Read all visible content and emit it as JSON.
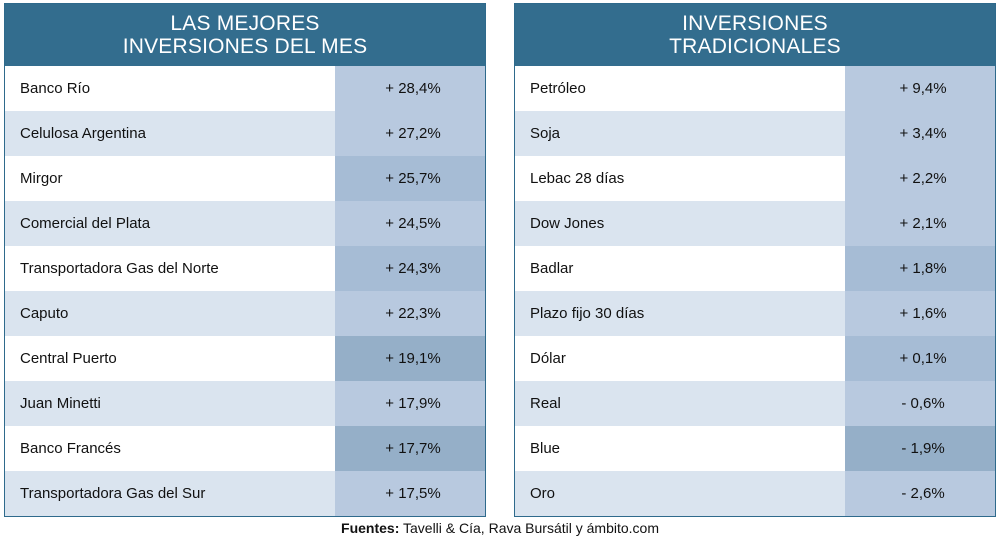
{
  "footer": {
    "label": "Fuentes:",
    "text": "Tavelli & Cía, Rava Bursátil y ámbito.com"
  },
  "colors": {
    "header": "#336d8e",
    "row_light": "#ffffff",
    "row_alt": "#dae4ef",
    "value_shades": [
      "#b8c9df",
      "#a6bcd5",
      "#95afc8"
    ]
  },
  "chart_data": [
    {
      "type": "table",
      "title_lines": [
        "LAS MEJORES",
        "INVERSIONES DEL MES"
      ],
      "rows": [
        {
          "name": "Banco Río",
          "value": "+ 28,4%",
          "shade": 0
        },
        {
          "name": "Celulosa Argentina",
          "value": "+ 27,2%",
          "shade": 0
        },
        {
          "name": "Mirgor",
          "value": "+ 25,7%",
          "shade": 1
        },
        {
          "name": "Comercial del Plata",
          "value": "+ 24,5%",
          "shade": 0
        },
        {
          "name": "Transportadora Gas del Norte",
          "value": "+ 24,3%",
          "shade": 1
        },
        {
          "name": "Caputo",
          "value": "+ 22,3%",
          "shade": 0
        },
        {
          "name": "Central Puerto",
          "value": "+ 19,1%",
          "shade": 2
        },
        {
          "name": "Juan Minetti",
          "value": "+ 17,9%",
          "shade": 0
        },
        {
          "name": "Banco Francés",
          "value": "+ 17,7%",
          "shade": 2
        },
        {
          "name": "Transportadora Gas del Sur",
          "value": "+ 17,5%",
          "shade": 0
        }
      ]
    },
    {
      "type": "table",
      "title_lines": [
        "INVERSIONES",
        "TRADICIONALES"
      ],
      "rows": [
        {
          "name": "Petróleo",
          "value": "+ 9,4%",
          "shade": 0
        },
        {
          "name": "Soja",
          "value": "+ 3,4%",
          "shade": 0
        },
        {
          "name": "Lebac 28 días",
          "value": "+ 2,2%",
          "shade": 0
        },
        {
          "name": "Dow Jones",
          "value": "+ 2,1%",
          "shade": 0
        },
        {
          "name": "Badlar",
          "value": "+ 1,8%",
          "shade": 1
        },
        {
          "name": "Plazo fijo 30 días",
          "value": "+ 1,6%",
          "shade": 0
        },
        {
          "name": "Dólar",
          "value": "+ 0,1%",
          "shade": 1
        },
        {
          "name": "Real",
          "value": "- 0,6%",
          "shade": 0
        },
        {
          "name": "Blue",
          "value": "- 1,9%",
          "shade": 2
        },
        {
          "name": "Oro",
          "value": "- 2,6%",
          "shade": 0
        }
      ]
    }
  ]
}
